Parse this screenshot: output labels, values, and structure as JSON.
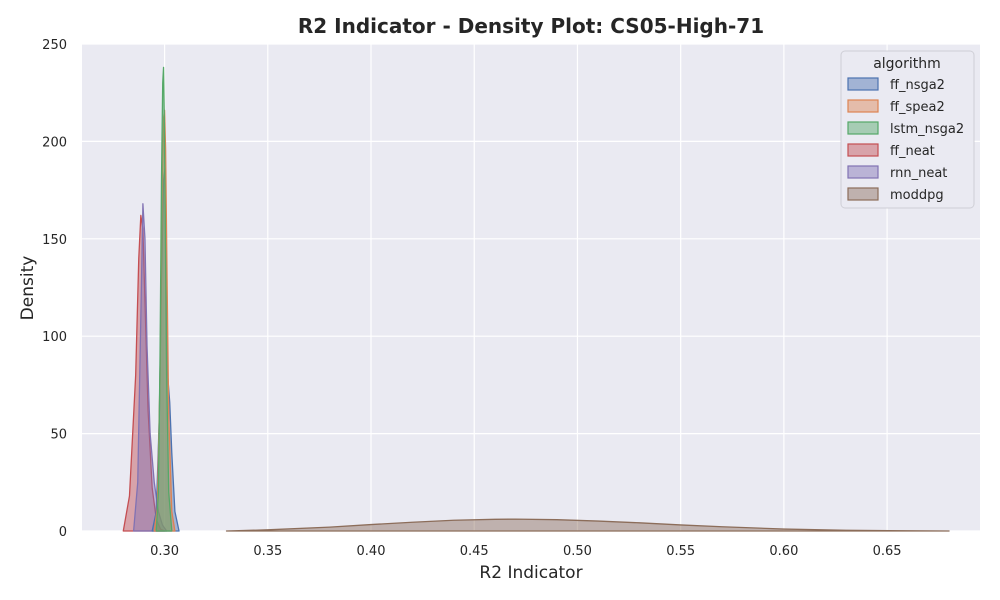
{
  "chart_data": {
    "type": "area",
    "title": "R2 Indicator - Density Plot: CS05-High-71",
    "xlabel": "R2 Indicator",
    "ylabel": "Density",
    "xlim": [
      0.26,
      0.695
    ],
    "ylim": [
      0,
      250
    ],
    "xticks": [
      0.3,
      0.35,
      0.4,
      0.45,
      0.5,
      0.55,
      0.6,
      0.65
    ],
    "xtick_labels": [
      "0.30",
      "0.35",
      "0.40",
      "0.45",
      "0.50",
      "0.55",
      "0.60",
      "0.65"
    ],
    "yticks": [
      0,
      50,
      100,
      150,
      200,
      250
    ],
    "ytick_labels": [
      "0",
      "50",
      "100",
      "150",
      "200",
      "250"
    ],
    "grid": true,
    "legend": {
      "title": "algorithm",
      "position": "top-right"
    },
    "series": [
      {
        "name": "moddpg",
        "color": "#8c6d5a",
        "x": [
          0.33,
          0.35,
          0.38,
          0.4,
          0.42,
          0.44,
          0.46,
          0.47,
          0.49,
          0.51,
          0.53,
          0.55,
          0.57,
          0.6,
          0.63,
          0.66,
          0.68
        ],
        "y": [
          0,
          0.6,
          2.0,
          3.3,
          4.5,
          5.5,
          6.0,
          6.1,
          5.8,
          5.1,
          4.2,
          3.1,
          2.2,
          1.0,
          0.4,
          0.1,
          0
        ]
      },
      {
        "name": "ff_neat",
        "color": "#c44e52",
        "x": [
          0.28,
          0.283,
          0.286,
          0.2875,
          0.2885,
          0.2895,
          0.2905,
          0.292,
          0.294,
          0.296,
          0.298,
          0.3
        ],
        "y": [
          0,
          18,
          80,
          140,
          162,
          155,
          118,
          62,
          22,
          6,
          1,
          0
        ]
      },
      {
        "name": "rnn_neat",
        "color": "#8172b3",
        "x": [
          0.285,
          0.287,
          0.2885,
          0.2895,
          0.2905,
          0.2915,
          0.293,
          0.295,
          0.297,
          0.299,
          0.301
        ],
        "y": [
          0,
          25,
          110,
          168,
          150,
          95,
          50,
          25,
          10,
          3,
          0
        ]
      },
      {
        "name": "ff_nsga2",
        "color": "#4c72b0",
        "x": [
          0.294,
          0.296,
          0.2975,
          0.2985,
          0.2995,
          0.3002,
          0.3008,
          0.3015,
          0.3025,
          0.3035,
          0.305,
          0.307
        ],
        "y": [
          0,
          10,
          60,
          130,
          180,
          186,
          140,
          80,
          66,
          40,
          10,
          0
        ]
      },
      {
        "name": "ff_spea2",
        "color": "#dd8452",
        "x": [
          0.295,
          0.2965,
          0.2978,
          0.2988,
          0.2995,
          0.3,
          0.3005,
          0.3012,
          0.302,
          0.3035,
          0.305
        ],
        "y": [
          0,
          12,
          80,
          170,
          212,
          216,
          196,
          130,
          60,
          10,
          0
        ]
      },
      {
        "name": "lstm_nsga2",
        "color": "#55a868",
        "x": [
          0.296,
          0.297,
          0.2978,
          0.2985,
          0.2991,
          0.2995,
          0.2999,
          0.3004,
          0.301,
          0.302,
          0.3035
        ],
        "y": [
          0,
          20,
          90,
          180,
          230,
          238,
          210,
          150,
          80,
          20,
          0
        ]
      }
    ],
    "legend_order": [
      "ff_nsga2",
      "ff_spea2",
      "lstm_nsga2",
      "ff_neat",
      "rnn_neat",
      "moddpg"
    ]
  }
}
